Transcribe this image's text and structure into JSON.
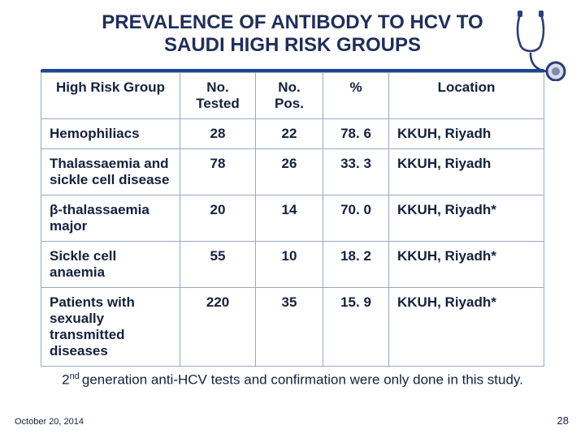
{
  "title_line1": "PREVALENCE OF ANTIBODY TO HCV TO",
  "title_line2": "SAUDI HIGH RISK GROUPS",
  "title_color": "#1f2e5a",
  "band_bg": "#163a7a",
  "border_color": "#9aa7c7",
  "text_color": "#14213d",
  "columns": [
    "High Risk Group",
    "No. Tested",
    "No. Pos.",
    "%",
    "Location"
  ],
  "rows": [
    {
      "group": "Hemophiliacs",
      "tested": "28",
      "pos": "22",
      "pct": "78. 6",
      "loc": "KKUH, Riyadh"
    },
    {
      "group": "Thalassaemia and sickle cell disease",
      "tested": "78",
      "pos": "26",
      "pct": "33. 3",
      "loc": "KKUH, Riyadh"
    },
    {
      "group": "β-thalassaemia major",
      "tested": "20",
      "pos": "14",
      "pct": "70. 0",
      "loc": "KKUH, Riyadh*"
    },
    {
      "group": "Sickle cell anaemia",
      "tested": "55",
      "pos": "10",
      "pct": "18. 2",
      "loc": "KKUH, Riyadh*"
    },
    {
      "group": "Patients with sexually transmitted diseases",
      "tested": "220",
      "pos": "35",
      "pct": "15. 9",
      "loc": "KKUH, Riyadh*"
    }
  ],
  "footnote_pre": "2",
  "footnote_sup": "nd ",
  "footnote_post": "generation anti-HCV tests and confirmation were only done in this study.",
  "footer_date": "October 20, 2014",
  "page_number": "28"
}
